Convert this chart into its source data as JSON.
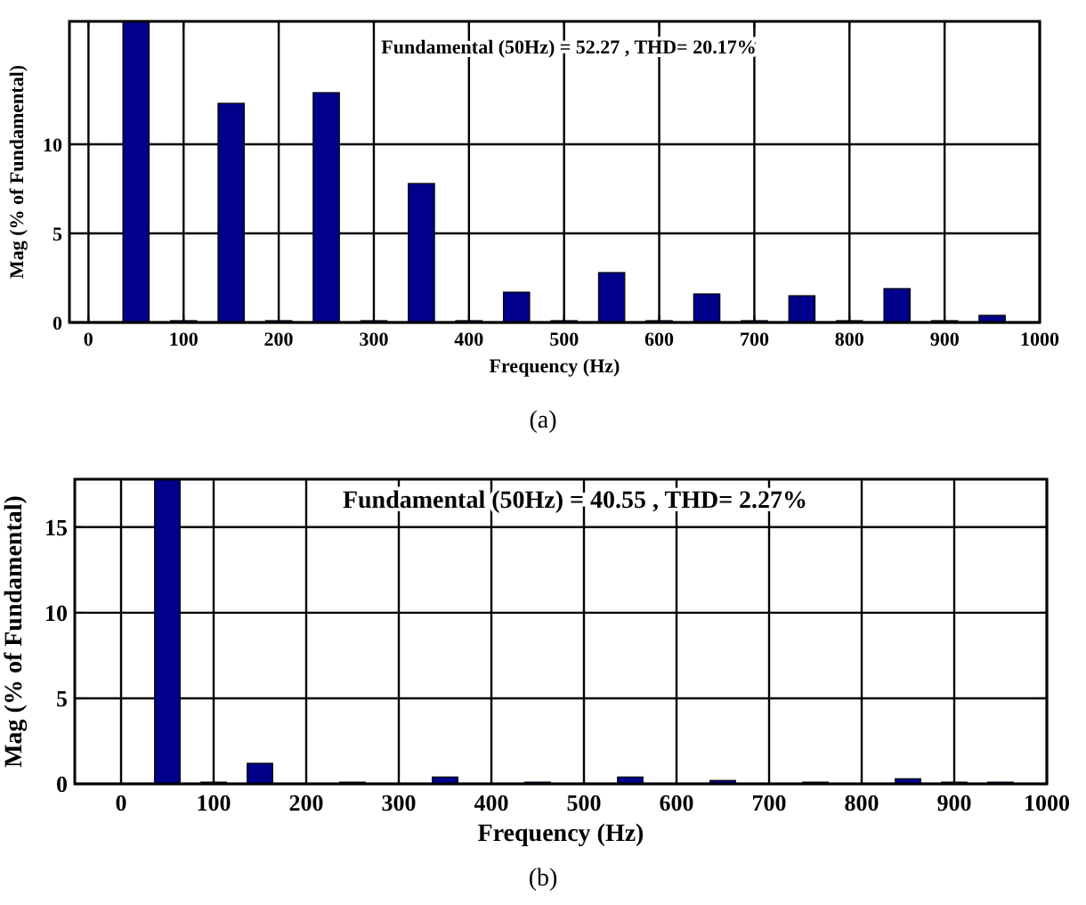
{
  "chart_data": [
    {
      "type": "bar",
      "title": "Fundamental (50Hz) = 52.27 , THD= 20.17%",
      "xlabel": "Frequency (Hz)",
      "ylabel": "Mag (% of Fundamental)",
      "annotations": [
        "(a)"
      ],
      "x": [
        0,
        50,
        100,
        150,
        200,
        250,
        300,
        350,
        400,
        450,
        500,
        550,
        600,
        650,
        700,
        750,
        800,
        850,
        900,
        950
      ],
      "series": [
        {
          "color": "#00008b",
          "values": [
            0,
            16.9,
            0.1,
            12.3,
            0.1,
            12.9,
            0.1,
            7.8,
            0.1,
            1.7,
            0.1,
            2.8,
            0.1,
            1.6,
            0.1,
            1.5,
            0.1,
            1.9,
            0.1,
            0.4
          ]
        }
      ],
      "xlim": [
        -20,
        1000
      ],
      "xticks": [
        0,
        100,
        200,
        300,
        400,
        500,
        600,
        700,
        800,
        900,
        1000
      ],
      "ylim": [
        0,
        16.9
      ],
      "yticks": [
        0,
        5,
        10
      ],
      "grid": true
    },
    {
      "type": "bar",
      "title": "Fundamental (50Hz) = 40.55 , THD= 2.27%",
      "xlabel": "Frequency (Hz)",
      "ylabel": "Mag (% of Fundamental)",
      "annotations": [
        "(b)"
      ],
      "x": [
        0,
        50,
        100,
        150,
        200,
        250,
        300,
        350,
        400,
        450,
        500,
        550,
        600,
        650,
        700,
        750,
        800,
        850,
        900,
        950
      ],
      "series": [
        {
          "color": "#00008b",
          "values": [
            0,
            17.8,
            0.1,
            1.2,
            0,
            0.1,
            0,
            0.4,
            0,
            0.1,
            0,
            0.4,
            0,
            0.2,
            0,
            0.1,
            0,
            0.3,
            0.1,
            0.1
          ]
        }
      ],
      "xlim": [
        -50,
        1000
      ],
      "xticks": [
        0,
        100,
        200,
        300,
        400,
        500,
        600,
        700,
        800,
        900,
        1000
      ],
      "ylim": [
        0,
        17.8
      ],
      "yticks": [
        0,
        5,
        10,
        15
      ],
      "grid": true
    }
  ]
}
